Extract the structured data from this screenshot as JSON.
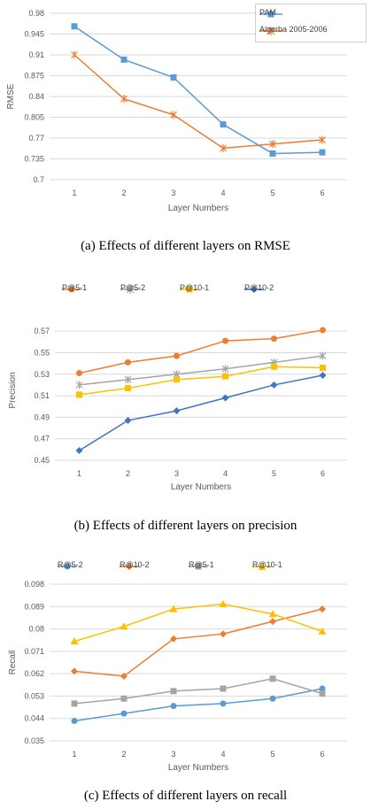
{
  "chart_data": [
    {
      "type": "line",
      "caption": "(a) Effects of different layers on RMSE",
      "xlabel": "Layer Numbers",
      "ylabel": "RMSE",
      "categories": [
        "1",
        "2",
        "3",
        "4",
        "5",
        "6"
      ],
      "yticks": [
        "0.7",
        "0.735",
        "0.77",
        "0.805",
        "0.84",
        "0.875",
        "0.91",
        "0.945",
        "0.98"
      ],
      "ylim": [
        0.7,
        0.98
      ],
      "grid": true,
      "legend": "top-right",
      "series": [
        {
          "name": "PAM",
          "color": "#5B9BD5",
          "marker": "square",
          "values": [
            0.958,
            0.902,
            0.872,
            0.793,
            0.744,
            0.746
          ]
        },
        {
          "name": "Algerba 2005-2006",
          "color": "#ED7D31",
          "marker": "star",
          "values": [
            0.91,
            0.836,
            0.809,
            0.753,
            0.76,
            0.767
          ]
        }
      ]
    },
    {
      "type": "line",
      "caption": "(b) Effects of different layers on precision",
      "xlabel": "Layer Numbers",
      "ylabel": "Precision",
      "categories": [
        "1",
        "2",
        "3",
        "4",
        "5",
        "6"
      ],
      "yticks": [
        "0.45",
        "0.47",
        "0.49",
        "0.51",
        "0.53",
        "0.55",
        "0.57"
      ],
      "ylim": [
        0.45,
        0.58
      ],
      "grid": true,
      "legend": "top",
      "series": [
        {
          "name": "P@5-1",
          "color": "#ED7D31",
          "marker": "circle",
          "values": [
            0.531,
            0.541,
            0.547,
            0.561,
            0.563,
            0.571
          ]
        },
        {
          "name": "P@5-2",
          "color": "#A5A5A5",
          "marker": "star",
          "values": [
            0.52,
            0.525,
            0.53,
            0.535,
            0.541,
            0.547
          ]
        },
        {
          "name": "P@10-1",
          "color": "#FFC000",
          "marker": "square",
          "values": [
            0.511,
            0.517,
            0.525,
            0.528,
            0.537,
            0.536
          ]
        },
        {
          "name": "P@10-2",
          "color": "#4472C4",
          "marker": "diamond",
          "values": [
            0.459,
            0.487,
            0.496,
            0.508,
            0.52,
            0.529
          ]
        }
      ]
    },
    {
      "type": "line",
      "caption": "(c) Effects of different layers on recall",
      "xlabel": "Layer Numbers",
      "ylabel": "Recall",
      "categories": [
        "1",
        "2",
        "3",
        "4",
        "5",
        "6"
      ],
      "yticks": [
        "0.035",
        "0.044",
        "0.053",
        "0.062",
        "0.071",
        "0.08",
        "0.089",
        "0.098"
      ],
      "ylim": [
        0.035,
        0.098
      ],
      "grid": true,
      "legend": "top",
      "series": [
        {
          "name": "R@5-2",
          "color": "#5B9BD5",
          "marker": "circle",
          "values": [
            0.043,
            0.046,
            0.049,
            0.05,
            0.052,
            0.056
          ]
        },
        {
          "name": "R@10-2",
          "color": "#ED7D31",
          "marker": "diamond",
          "values": [
            0.063,
            0.061,
            0.076,
            0.078,
            0.083,
            0.088
          ]
        },
        {
          "name": "R@5-1",
          "color": "#A5A5A5",
          "marker": "square",
          "values": [
            0.05,
            0.052,
            0.055,
            0.056,
            0.06,
            0.054
          ]
        },
        {
          "name": "R@10-1",
          "color": "#FFC000",
          "marker": "triangle",
          "values": [
            0.075,
            0.081,
            0.088,
            0.09,
            0.086,
            0.079
          ]
        }
      ]
    }
  ]
}
